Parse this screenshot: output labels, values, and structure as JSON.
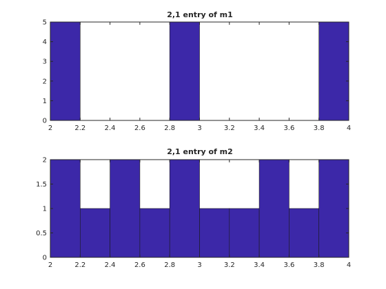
{
  "chart_data": [
    {
      "type": "bar",
      "title": "2,1 entry of m1",
      "bin_edges": [
        2,
        2.2,
        2.4,
        2.6,
        2.8,
        3,
        3.2,
        3.4,
        3.6,
        3.8,
        4
      ],
      "values": [
        5,
        0,
        0,
        0,
        5,
        0,
        0,
        0,
        0,
        5
      ],
      "xlim": [
        2,
        4
      ],
      "ylim": [
        0,
        5
      ],
      "xticks": [
        "2",
        "2.2",
        "2.4",
        "2.6",
        "2.8",
        "3",
        "3.2",
        "3.4",
        "3.6",
        "3.8",
        "4"
      ],
      "yticks": [
        "0",
        "1",
        "2",
        "3",
        "4",
        "5"
      ],
      "ytick_values": [
        0,
        1,
        2,
        3,
        4,
        5
      ],
      "xlabel": "",
      "ylabel": "",
      "grid": false,
      "bar_color": "#3c28a8"
    },
    {
      "type": "bar",
      "title": "2,1 entry of m2",
      "bin_edges": [
        2,
        2.2,
        2.4,
        2.6,
        2.8,
        3,
        3.2,
        3.4,
        3.6,
        3.8,
        4
      ],
      "values": [
        2,
        1,
        2,
        1,
        2,
        1,
        1,
        2,
        1,
        2
      ],
      "xlim": [
        2,
        4
      ],
      "ylim": [
        0,
        2
      ],
      "xticks": [
        "2",
        "2.2",
        "2.4",
        "2.6",
        "2.8",
        "3",
        "3.2",
        "3.4",
        "3.6",
        "3.8",
        "4"
      ],
      "yticks": [
        "0",
        "0.5",
        "1",
        "1.5",
        "2"
      ],
      "ytick_values": [
        0,
        0.5,
        1,
        1.5,
        2
      ],
      "xlabel": "",
      "ylabel": "",
      "grid": false,
      "bar_color": "#3c28a8"
    }
  ]
}
